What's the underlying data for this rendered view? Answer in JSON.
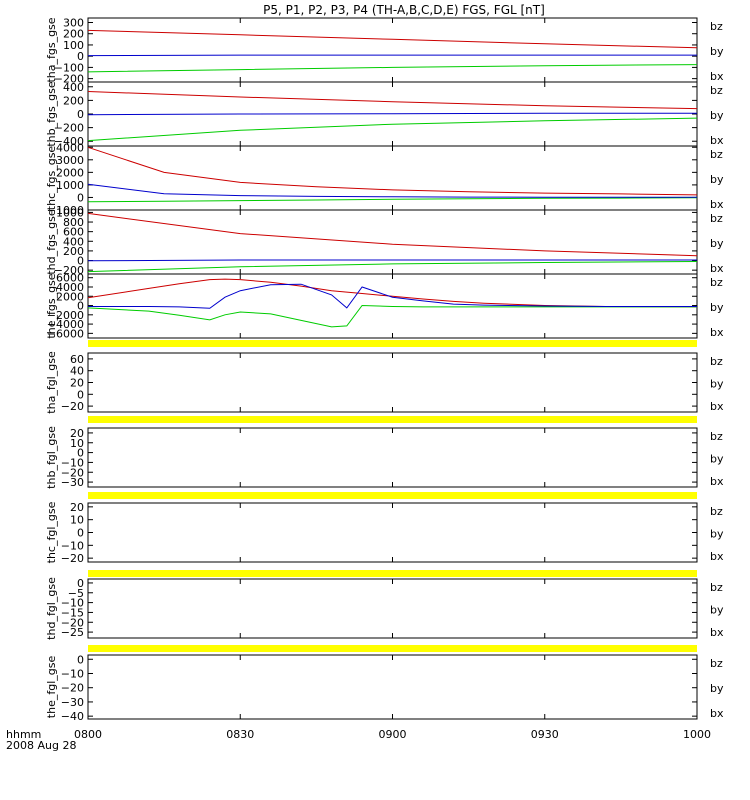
{
  "title": "P5, P1, P2, P3, P4 (TH-A,B,C,D,E) FGS, FGL [nT]",
  "time_axis": {
    "ticks": [
      "0800",
      "0830",
      "0900",
      "0930",
      "1000"
    ],
    "label_line1": "hhmm",
    "label_line2": "2008 Aug 28"
  },
  "legend": [
    {
      "name": "bz",
      "color": "#cc0000"
    },
    {
      "name": "by",
      "color": "#00cc00"
    },
    {
      "name": "bx",
      "color": "#0000cc"
    }
  ],
  "colors": {
    "bz": "#cc0000",
    "by": "#00cc00",
    "bx": "#0000cc",
    "missing": "#ffff00"
  },
  "chart_data": [
    {
      "type": "line",
      "ylabel": "tha_fgs_gse",
      "ylim": [
        -230,
        340
      ],
      "yticks": [
        300,
        200,
        100,
        0,
        -100,
        -200
      ],
      "x": [
        0,
        0.5,
        1.0,
        1.5,
        2.0
      ],
      "series": [
        {
          "name": "bz",
          "values": [
            230,
            190,
            150,
            110,
            75
          ]
        },
        {
          "name": "by",
          "values": [
            -140,
            -120,
            -100,
            -85,
            -75
          ]
        },
        {
          "name": "bx",
          "values": [
            5,
            10,
            10,
            10,
            10
          ]
        }
      ]
    },
    {
      "type": "line",
      "ylabel": "thb_fgs_gse",
      "ylim": [
        -470,
        470
      ],
      "yticks": [
        400,
        200,
        0,
        -200,
        -400
      ],
      "x": [
        0,
        0.5,
        1.0,
        1.5,
        2.0
      ],
      "series": [
        {
          "name": "bz",
          "values": [
            330,
            250,
            180,
            120,
            80
          ]
        },
        {
          "name": "by",
          "values": [
            -390,
            -240,
            -150,
            -100,
            -60
          ]
        },
        {
          "name": "bx",
          "values": [
            -10,
            0,
            5,
            10,
            10
          ]
        }
      ]
    },
    {
      "type": "line",
      "ylabel": "thc_fgs_gse",
      "ylim": [
        -1000,
        4100
      ],
      "yticks": [
        4000,
        3000,
        2000,
        1000,
        0,
        -1000
      ],
      "x": [
        0,
        0.25,
        0.5,
        0.75,
        1.0,
        1.25,
        1.5,
        1.75,
        2.0
      ],
      "series": [
        {
          "name": "bz",
          "values": [
            4000,
            2000,
            1200,
            850,
            600,
            450,
            350,
            280,
            200
          ]
        },
        {
          "name": "by",
          "values": [
            -350,
            -300,
            -250,
            -200,
            -150,
            -100,
            -70,
            -50,
            -20
          ]
        },
        {
          "name": "bx",
          "values": [
            1050,
            300,
            150,
            80,
            50,
            30,
            20,
            10,
            10
          ]
        }
      ]
    },
    {
      "type": "line",
      "ylabel": "thd_fgs_gse",
      "ylim": [
        -280,
        1050
      ],
      "yticks": [
        1000,
        800,
        600,
        400,
        200,
        0,
        -200
      ],
      "x": [
        0,
        0.5,
        1.0,
        1.5,
        2.0
      ],
      "series": [
        {
          "name": "bz",
          "values": [
            980,
            560,
            340,
            200,
            100
          ]
        },
        {
          "name": "by",
          "values": [
            -230,
            -130,
            -70,
            -40,
            -20
          ]
        },
        {
          "name": "bx",
          "values": [
            -5,
            10,
            10,
            10,
            10
          ]
        }
      ]
    },
    {
      "type": "line",
      "ylabel": "the_fgs_gse",
      "ylim": [
        -7000,
        6800
      ],
      "yticks": [
        6000,
        4000,
        2000,
        0,
        -2000,
        -4000,
        -6000
      ],
      "x": [
        0,
        0.2,
        0.3,
        0.4,
        0.45,
        0.5,
        0.6,
        0.7,
        0.8,
        0.85,
        0.9,
        1.0,
        1.1,
        1.2,
        1.3,
        1.5,
        1.7,
        2.0
      ],
      "series": [
        {
          "name": "bz",
          "values": [
            1700,
            3700,
            4700,
            5600,
            5700,
            5600,
            5000,
            4200,
            3200,
            2900,
            2600,
            2000,
            1400,
            900,
            500,
            0,
            -200,
            -300
          ]
        },
        {
          "name": "by",
          "values": [
            -500,
            -1200,
            -2100,
            -3100,
            -2000,
            -1400,
            -1800,
            -3200,
            -4600,
            -4400,
            0,
            -200,
            -300,
            -300,
            -300,
            -300,
            -300,
            -300
          ]
        },
        {
          "name": "bx",
          "values": [
            -200,
            -200,
            -300,
            -600,
            1800,
            3200,
            4500,
            4600,
            2300,
            -500,
            4000,
            1800,
            1000,
            300,
            100,
            -100,
            -200,
            -200
          ]
        }
      ]
    },
    {
      "type": "line",
      "ylabel": "tha_fgl_gse",
      "ylim": [
        -30,
        70
      ],
      "yticks": [
        60,
        40,
        20,
        0,
        -20
      ],
      "x": [],
      "series": []
    },
    {
      "type": "line",
      "ylabel": "thb_fgl_gse",
      "ylim": [
        -35,
        25
      ],
      "yticks": [
        20,
        10,
        0,
        -10,
        -20,
        -30
      ],
      "x": [],
      "series": []
    },
    {
      "type": "line",
      "ylabel": "thc_fgl_gse",
      "ylim": [
        -23,
        23
      ],
      "yticks": [
        20,
        10,
        0,
        -10,
        -20
      ],
      "x": [],
      "series": []
    },
    {
      "type": "line",
      "ylabel": "thd_fgl_gse",
      "ylim": [
        -28,
        2
      ],
      "yticks": [
        0,
        -5,
        -10,
        -15,
        -20,
        -25
      ],
      "x": [],
      "series": []
    },
    {
      "type": "line",
      "ylabel": "the_fgl_gse",
      "ylim": [
        -42,
        3
      ],
      "yticks": [
        0,
        -10,
        -20,
        -30,
        -40
      ],
      "x": [],
      "series": []
    }
  ]
}
